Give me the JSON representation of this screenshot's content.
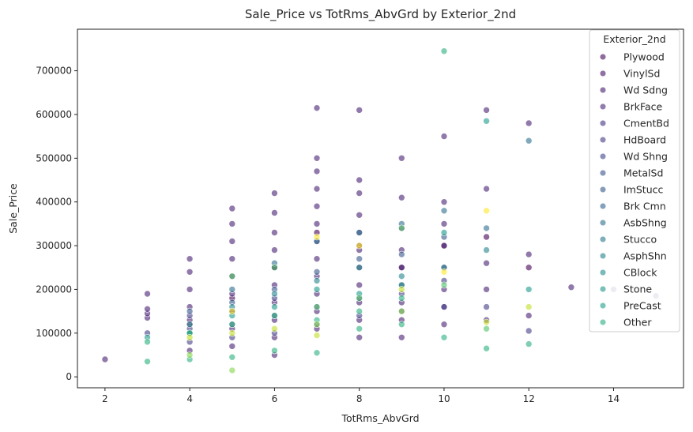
{
  "chart_data": {
    "type": "scatter",
    "title": "Sale_Price vs TotRms_AbvGrd by Exterior_2nd",
    "xlabel": "TotRms_AbvGrd",
    "ylabel": "Sale_Price",
    "xlim": [
      1.35,
      15.65
    ],
    "ylim": [
      -25000,
      795000
    ],
    "xticks": [
      2,
      4,
      6,
      8,
      10,
      12,
      14
    ],
    "yticks": [
      0,
      100000,
      200000,
      300000,
      400000,
      500000,
      600000,
      700000
    ],
    "grid": false,
    "legend_title": "Exterior_2nd",
    "legend_position": "top-right",
    "colors": {
      "Plywood": "#440154",
      "VinylSd": "#482173",
      "Wd Sdng": "#433e85",
      "BrkFace": "#38588c",
      "CmentBd": "#2d708e",
      "HdBoard": "#25858e",
      "Wd Shng": "#1e9b8a",
      "MetalSd": "#2ab07f",
      "ImStucc": "#52c569",
      "Brk Cmn": "#86d549",
      "AsbShng": "#c2df23",
      "Stucco": "#fde725"
    },
    "series": [
      {
        "name": "Plywood",
        "x": [
          4,
          5,
          6,
          7,
          8,
          9,
          10,
          11,
          12
        ],
        "y": [
          120000,
          180000,
          250000,
          330000,
          300000,
          250000,
          300000,
          320000,
          250000
        ]
      },
      {
        "name": "VinylSd",
        "x": [
          2,
          3,
          3,
          3,
          3,
          4,
          4,
          4,
          4,
          4,
          4,
          4,
          5,
          5,
          5,
          5,
          5,
          5,
          5,
          5,
          5,
          6,
          6,
          6,
          6,
          6,
          6,
          6,
          6,
          6,
          6,
          7,
          7,
          7,
          7,
          7,
          7,
          7,
          7,
          7,
          7,
          7,
          7,
          8,
          8,
          8,
          8,
          8,
          8,
          8,
          8,
          8,
          8,
          8,
          9,
          9,
          9,
          9,
          9,
          9,
          9,
          9,
          9,
          10,
          10,
          10,
          10,
          10,
          10,
          10,
          10,
          11,
          11,
          11,
          11,
          11,
          12,
          12,
          12,
          13,
          14,
          15
        ],
        "y": [
          40000,
          135000,
          145000,
          155000,
          190000,
          60000,
          100000,
          130000,
          160000,
          200000,
          240000,
          270000,
          70000,
          110000,
          150000,
          190000,
          230000,
          270000,
          310000,
          350000,
          385000,
          50000,
          90000,
          130000,
          170000,
          210000,
          250000,
          290000,
          330000,
          375000,
          420000,
          110000,
          150000,
          190000,
          230000,
          270000,
          310000,
          350000,
          390000,
          430000,
          470000,
          500000,
          615000,
          90000,
          130000,
          170000,
          210000,
          250000,
          290000,
          330000,
          370000,
          420000,
          450000,
          610000,
          90000,
          130000,
          170000,
          210000,
          250000,
          290000,
          340000,
          410000,
          500000,
          120000,
          160000,
          200000,
          250000,
          300000,
          350000,
          400000,
          550000,
          130000,
          200000,
          260000,
          430000,
          610000,
          140000,
          280000,
          580000,
          205000,
          200000,
          185000
        ]
      },
      {
        "name": "Wd Sdng",
        "x": [
          3,
          4,
          4,
          4,
          5,
          5,
          5,
          6,
          6,
          6,
          7,
          7,
          8,
          8,
          9,
          9,
          10,
          10,
          11,
          12
        ],
        "y": [
          100000,
          80000,
          110000,
          140000,
          90000,
          120000,
          150000,
          100000,
          140000,
          180000,
          120000,
          160000,
          140000,
          180000,
          150000,
          190000,
          160000,
          220000,
          160000,
          105000
        ]
      },
      {
        "name": "BrkFace",
        "x": [
          4,
          5,
          6,
          7,
          8,
          9,
          10
        ],
        "y": [
          150000,
          170000,
          200000,
          240000,
          270000,
          280000,
          320000
        ]
      },
      {
        "name": "CmentBd",
        "x": [
          5,
          6,
          7,
          8,
          9,
          10,
          11,
          12
        ],
        "y": [
          200000,
          260000,
          310000,
          330000,
          350000,
          380000,
          340000,
          540000
        ]
      },
      {
        "name": "HdBoard",
        "x": [
          4,
          5,
          6,
          7,
          8,
          9,
          10,
          11
        ],
        "y": [
          120000,
          160000,
          190000,
          220000,
          250000,
          230000,
          250000,
          290000
        ]
      },
      {
        "name": "Wd Shng",
        "x": [
          3,
          4,
          5,
          6,
          7,
          8,
          9,
          10,
          11,
          12
        ],
        "y": [
          90000,
          100000,
          140000,
          160000,
          200000,
          190000,
          210000,
          330000,
          585000,
          200000
        ]
      },
      {
        "name": "MetalSd",
        "x": [
          3,
          3,
          4,
          4,
          5,
          5,
          6,
          6,
          7,
          7,
          8,
          8,
          9,
          9,
          10,
          10,
          11,
          12
        ],
        "y": [
          35000,
          80000,
          40000,
          100000,
          45000,
          120000,
          60000,
          140000,
          55000,
          130000,
          110000,
          150000,
          120000,
          180000,
          90000,
          745000,
          65000,
          75000
        ]
      },
      {
        "name": "ImStucc",
        "x": [
          5,
          6,
          7,
          8,
          9,
          10,
          11
        ],
        "y": [
          230000,
          250000,
          160000,
          180000,
          340000,
          210000,
          110000
        ]
      },
      {
        "name": "Brk Cmn",
        "x": [
          4,
          5,
          7,
          9
        ],
        "y": [
          50000,
          15000,
          120000,
          150000
        ]
      },
      {
        "name": "AsbShng",
        "x": [
          4,
          5,
          6,
          7,
          9,
          11,
          12
        ],
        "y": [
          90000,
          100000,
          110000,
          95000,
          200000,
          125000,
          160000
        ]
      },
      {
        "name": "Stucco",
        "x": [
          5,
          7,
          8,
          10,
          11
        ],
        "y": [
          150000,
          320000,
          300000,
          240000,
          380000
        ]
      }
    ],
    "legend_entries": [
      "Plywood",
      "VinylSd",
      "Wd Sdng",
      "BrkFace",
      "CmentBd",
      "HdBoard",
      "Wd Shng",
      "MetalSd",
      "ImStucc",
      "Brk Cmn",
      "AsbShng",
      "Stucco",
      "AsphShn",
      "CBlock",
      "Stone",
      "PreCast",
      "Other"
    ],
    "legend_colors": [
      "#46085c",
      "#471365",
      "#481d6f",
      "#472878",
      "#453281",
      "#443a83",
      "#404688",
      "#3b518b",
      "#375a8c",
      "#32648e",
      "#2e6e8e",
      "#2a788e",
      "#26828e",
      "#228c8d",
      "#1f968b",
      "#1fa088",
      "#28ae80"
    ]
  }
}
